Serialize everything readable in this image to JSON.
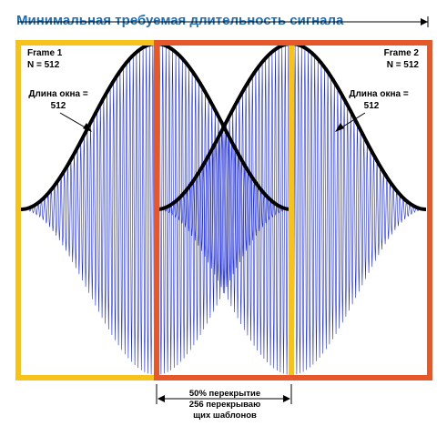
{
  "title": "Минимальная требуемая длительность сигнала",
  "frame1": {
    "name": "Frame 1",
    "size": "N = 512"
  },
  "frame2": {
    "name": "Frame 2",
    "size": "N = 512"
  },
  "window_length_left": {
    "line1": "Длина окна =",
    "line2": "512"
  },
  "window_length_right": {
    "line1": "Длина окна =",
    "line2": "512"
  },
  "overlap": {
    "line1": "50% перекрытие",
    "line2": "256 перекрываю",
    "line3": "щих  шаблонов"
  },
  "colors": {
    "title": "#1f6fb5",
    "frame1_border": "#f7c31b",
    "frame2_border": "#e6582a",
    "window_curve": "#000000",
    "signal": "#1c2bd6",
    "arrows": "#000000"
  }
}
